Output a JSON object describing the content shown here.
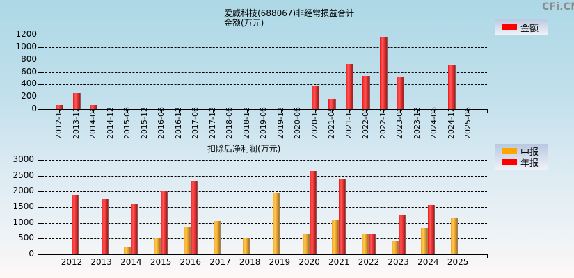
{
  "watermark": "CFi.CN",
  "chart_data": [
    {
      "type": "bar",
      "title": "爱威科技(688067)非经常损益合计",
      "subtitle": "金额(万元)",
      "ylabel": "金额(万元)",
      "xlabel": "",
      "ylim": [
        0,
        1200
      ],
      "yticks": [
        0,
        200,
        400,
        600,
        800,
        1000,
        1200
      ],
      "grid": true,
      "legend_position": "top-right",
      "categories": [
        "2012-12",
        "2013-12",
        "2014-06",
        "2014-12",
        "2015-06",
        "2015-12",
        "2016-06",
        "2016-12",
        "2017-06",
        "2017-12",
        "2018-06",
        "2018-12",
        "2019-06",
        "2019-12",
        "2020-06",
        "2020-12",
        "2021-06",
        "2021-12",
        "2022-06",
        "2022-12",
        "2023-06",
        "2023-12",
        "2024-06",
        "2024-12",
        "2025-06"
      ],
      "series": [
        {
          "name": "金额",
          "color": "#ff0000",
          "values": [
            67,
            258,
            67,
            0,
            0,
            0,
            0,
            0,
            0,
            0,
            0,
            0,
            0,
            0,
            0,
            371,
            169,
            730,
            539,
            1169,
            517,
            0,
            0,
            719,
            0
          ]
        }
      ]
    },
    {
      "type": "bar",
      "title": "扣除后净利润(万元)",
      "ylabel": "万元",
      "xlabel": "",
      "ylim": [
        0,
        3000
      ],
      "yticks": [
        0,
        500,
        1000,
        1500,
        2000,
        2500,
        3000
      ],
      "grid": true,
      "legend_position": "top-right",
      "categories": [
        "2012",
        "2013",
        "2014",
        "2015",
        "2016",
        "2017",
        "2018",
        "2019",
        "2020",
        "2021",
        "2022",
        "2023",
        "2024",
        "2025"
      ],
      "series": [
        {
          "name": "中报",
          "color": "#ffa500",
          "values": [
            null,
            null,
            215,
            497,
            880,
            1058,
            503,
            1967,
            636,
            1102,
            658,
            415,
            836,
            1146
          ]
        },
        {
          "name": "年报",
          "color": "#ff0000",
          "values": [
            1893,
            1760,
            1605,
            2004,
            2344,
            null,
            null,
            null,
            2654,
            2410,
            636,
            1257,
            1567,
            null
          ]
        }
      ]
    }
  ]
}
